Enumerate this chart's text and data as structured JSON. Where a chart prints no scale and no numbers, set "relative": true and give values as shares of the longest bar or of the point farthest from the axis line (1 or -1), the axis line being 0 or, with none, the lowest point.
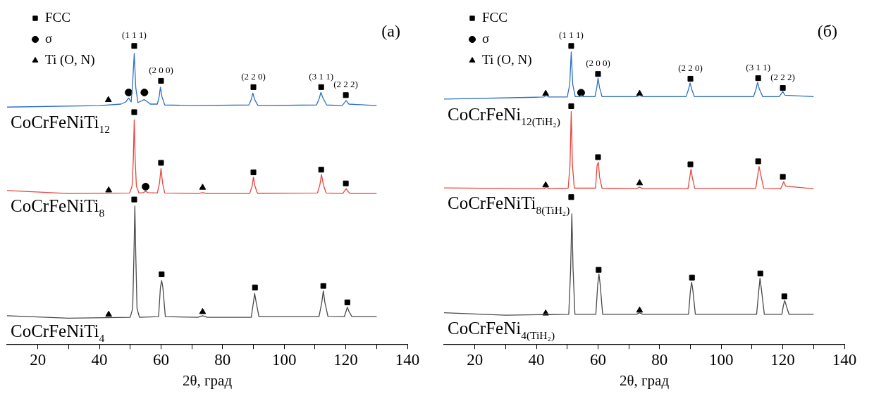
{
  "chart_data": [
    {
      "type": "line",
      "relative": true,
      "xlabel": "2θ, град",
      "xlim": [
        10,
        140
      ],
      "xticks": [
        20,
        {
          "value": 30,
          "label": null
        },
        40,
        {
          "value": 50,
          "label": null
        },
        60,
        {
          "value": 70,
          "label": null
        },
        80,
        {
          "value": 90,
          "label": null
        },
        100,
        {
          "value": 110,
          "label": null
        },
        120,
        {
          "value": 130,
          "label": null
        },
        140
      ],
      "grid": false,
      "legend": "top left",
      "annotations": [
        "(a)",
        {
          "text": "(1 1 1)",
          "x": 51.3,
          "y": 1.0
        },
        {
          "text": "(2 0 0)",
          "x": 60,
          "y": 0.883
        },
        {
          "text": "(2 2 0)",
          "x": 90,
          "y": 0.862
        },
        {
          "text": "(3 1 1)",
          "x": 112,
          "y": 0.862
        },
        {
          "text": "(2 2 2)",
          "x": 120,
          "y": 0.835
        }
      ],
      "series": [
        {
          "type": "line",
          "name": "CoCrFeNiTi$_{12}$",
          "color": "#2f6fc4",
          "marker": "none",
          "x": [
            10,
            40,
            47,
            48.5,
            49.5,
            50.3,
            50.8,
            51.3,
            51.8,
            52.5,
            53.5,
            54.5,
            55.3,
            56.5,
            58.8,
            59.4,
            59.8,
            60.3,
            61.2,
            70,
            88.5,
            89.3,
            89.8,
            90.4,
            91.5,
            110.5,
            111.4,
            111.9,
            112.6,
            113.8,
            118.8,
            119.6,
            120.1,
            121,
            130
          ],
          "values": [
            0.795,
            0.8,
            0.805,
            0.812,
            0.825,
            0.812,
            0.88,
            0.975,
            0.86,
            0.81,
            0.815,
            0.82,
            0.815,
            0.805,
            0.805,
            0.83,
            0.862,
            0.83,
            0.802,
            0.8,
            0.802,
            0.82,
            0.842,
            0.82,
            0.8,
            0.802,
            0.825,
            0.844,
            0.825,
            0.802,
            0.8,
            0.81,
            0.817,
            0.805,
            0.8
          ]
        },
        {
          "type": "line",
          "name": "CoCrFeNiTi$_{8}$",
          "color": "#e8453c",
          "marker": "none",
          "x": [
            10,
            30,
            49.8,
            50.6,
            51.0,
            51.3,
            51.6,
            52.0,
            52.8,
            54.2,
            55,
            55.8,
            58.8,
            59.5,
            60,
            60.5,
            61.2,
            72,
            73.5,
            75,
            88.8,
            89.6,
            90,
            90.5,
            91.3,
            110.8,
            111.6,
            112.1,
            112.7,
            113.6,
            119,
            119.7,
            120.1,
            120.7,
            121.5,
            130
          ],
          "values": [
            0.515,
            0.505,
            0.507,
            0.53,
            0.62,
            0.752,
            0.62,
            0.53,
            0.507,
            0.508,
            0.512,
            0.508,
            0.507,
            0.54,
            0.589,
            0.54,
            0.507,
            0.505,
            0.508,
            0.505,
            0.505,
            0.53,
            0.56,
            0.53,
            0.506,
            0.507,
            0.535,
            0.569,
            0.535,
            0.507,
            0.505,
            0.515,
            0.521,
            0.512,
            0.505,
            0.505
          ]
        },
        {
          "type": "line",
          "name": "CoCrFeNiTi$_{4}$",
          "color": "#4a4a4a",
          "marker": "none",
          "x": [
            10,
            30,
            50,
            50.8,
            51.2,
            51.5,
            51.8,
            52.2,
            53,
            59.2,
            59.8,
            60.2,
            60.6,
            61.4,
            72,
            73.5,
            75,
            89.3,
            90,
            90.4,
            90.9,
            91.8,
            111.3,
            112.2,
            112.7,
            113.2,
            114.2,
            119.5,
            120.1,
            120.5,
            121,
            122,
            130
          ],
          "values": [
            0.095,
            0.087,
            0.09,
            0.12,
            0.3,
            0.463,
            0.3,
            0.12,
            0.09,
            0.092,
            0.19,
            0.213,
            0.19,
            0.092,
            0.09,
            0.095,
            0.09,
            0.09,
            0.14,
            0.17,
            0.14,
            0.092,
            0.092,
            0.14,
            0.179,
            0.14,
            0.093,
            0.092,
            0.11,
            0.124,
            0.11,
            0.092,
            0.092
          ]
        },
        {
          "type": "scatter",
          "name": "FCC",
          "color": "#000000",
          "marker": "square",
          "x": [
            51.3,
            60,
            90,
            112,
            120,
            51.3,
            60,
            90,
            112,
            120,
            51.3,
            60.2,
            90.5,
            112.7,
            120.5
          ],
          "values": [
            1.0,
            0.883,
            0.862,
            0.862,
            0.835,
            0.778,
            0.608,
            0.576,
            0.585,
            0.539,
            0.485,
            0.234,
            0.19,
            0.195,
            0.14
          ]
        },
        {
          "type": "scatter",
          "name": "σ",
          "color": "#000000",
          "marker": "circle",
          "x": [
            49.5,
            54.6,
            55
          ],
          "values": [
            0.844,
            0.844,
            0.528
          ]
        },
        {
          "type": "scatter",
          "name": "Ti (O, N)",
          "color": "#000000",
          "marker": "triangle",
          "x": [
            42.9,
            43,
            73.5,
            43,
            73.5
          ],
          "values": [
            0.819,
            0.516,
            0.525,
            0.099,
            0.108
          ]
        }
      ]
    },
    {
      "type": "line",
      "relative": true,
      "xlabel": "2θ, град",
      "xlim": [
        10,
        140
      ],
      "xticks": [
        20,
        {
          "value": 30,
          "label": null
        },
        40,
        {
          "value": 50,
          "label": null
        },
        60,
        {
          "value": 70,
          "label": null
        },
        80,
        {
          "value": 90,
          "label": null
        },
        100,
        {
          "value": 110,
          "label": null
        },
        120,
        {
          "value": 130,
          "label": null
        },
        140
      ],
      "grid": false,
      "legend": "top left",
      "annotations": [
        "(б)",
        {
          "text": "(1 1 1)",
          "x": 51.3,
          "y": 1.0
        },
        {
          "text": "(2 0 0)",
          "x": 60,
          "y": 0.906
        },
        {
          "text": "(2 2 0)",
          "x": 90,
          "y": 0.89
        },
        {
          "text": "(3 1 1)",
          "x": 112,
          "y": 0.892
        },
        {
          "text": "(2 2 2)",
          "x": 120,
          "y": 0.859
        }
      ],
      "series": [
        {
          "type": "line",
          "name": "CoCrFeNi$_{12(TiH₂)}$",
          "color": "#2f6fc4",
          "marker": "none",
          "x": [
            10,
            40,
            42.5,
            43.2,
            44,
            50,
            50.8,
            51.3,
            51.8,
            52.6,
            54,
            54.6,
            55.2,
            59,
            59.6,
            60,
            60.5,
            61.3,
            72.5,
            73.5,
            74.5,
            88.6,
            89.4,
            89.9,
            90.4,
            91.3,
            110.5,
            111.3,
            111.8,
            112.4,
            113.5,
            118.8,
            119.5,
            120,
            120.7,
            130
          ],
          "values": [
            0.822,
            0.828,
            0.829,
            0.834,
            0.829,
            0.829,
            0.87,
            0.98,
            0.87,
            0.83,
            0.83,
            0.835,
            0.83,
            0.83,
            0.86,
            0.892,
            0.86,
            0.83,
            0.83,
            0.834,
            0.83,
            0.83,
            0.855,
            0.876,
            0.855,
            0.83,
            0.83,
            0.855,
            0.878,
            0.855,
            0.83,
            0.83,
            0.84,
            0.847,
            0.835,
            0.83
          ]
        },
        {
          "type": "line",
          "name": "CoCrFeNiTi$_{8(TiH₂)}$",
          "color": "#e8453c",
          "marker": "none",
          "x": [
            10,
            42.5,
            43.2,
            44,
            50.3,
            50.9,
            51.3,
            51.7,
            52.3,
            59.2,
            59.7,
            60.1,
            60.5,
            61.3,
            72.5,
            73.5,
            74.5,
            89.2,
            89.8,
            90.2,
            90.6,
            91.4,
            111.2,
            111.9,
            112.3,
            112.8,
            113.8,
            119.3,
            119.9,
            120.3,
            120.9,
            130
          ],
          "values": [
            0.524,
            0.521,
            0.526,
            0.521,
            0.523,
            0.6,
            0.78,
            0.6,
            0.523,
            0.523,
            0.6,
            0.61,
            0.56,
            0.523,
            0.521,
            0.527,
            0.521,
            0.521,
            0.56,
            0.587,
            0.56,
            0.522,
            0.522,
            0.57,
            0.596,
            0.57,
            0.522,
            0.521,
            0.535,
            0.545,
            0.53,
            0.521
          ]
        },
        {
          "type": "line",
          "name": "CoCrFeNi$_{4(TiH₂)}$",
          "color": "#4a4a4a",
          "marker": "none",
          "x": [
            10,
            30,
            42.5,
            43.2,
            44,
            50.5,
            51.1,
            51.5,
            51.9,
            52.5,
            59.3,
            59.9,
            60.3,
            60.7,
            61.5,
            72.5,
            73.5,
            74.5,
            89.4,
            90,
            90.4,
            90.8,
            91.6,
            111.5,
            112.2,
            112.6,
            113.1,
            114,
            119.7,
            120.2,
            120.6,
            121.1,
            122,
            130
          ],
          "values": [
            0.105,
            0.097,
            0.099,
            0.103,
            0.099,
            0.1,
            0.25,
            0.437,
            0.25,
            0.1,
            0.1,
            0.2,
            0.235,
            0.2,
            0.1,
            0.1,
            0.105,
            0.1,
            0.1,
            0.18,
            0.207,
            0.18,
            0.1,
            0.1,
            0.18,
            0.221,
            0.18,
            0.1,
            0.1,
            0.13,
            0.146,
            0.13,
            0.1,
            0.1
          ]
        },
        {
          "type": "scatter",
          "name": "FCC",
          "color": "#000000",
          "marker": "square",
          "x": [
            51.3,
            60,
            90,
            112,
            120,
            51.3,
            60,
            90,
            112,
            120,
            51.3,
            60.2,
            90.5,
            112.7,
            120.5
          ],
          "values": [
            1.0,
            0.906,
            0.89,
            0.892,
            0.859,
            0.798,
            0.627,
            0.603,
            0.613,
            0.561,
            0.493,
            0.249,
            0.223,
            0.237,
            0.16
          ]
        },
        {
          "type": "scatter",
          "name": "σ",
          "color": "#000000",
          "marker": "circle",
          "x": [
            54.5
          ],
          "values": [
            0.843
          ]
        },
        {
          "type": "scatter",
          "name": "Ti (O, N)",
          "color": "#000000",
          "marker": "triangle",
          "x": [
            43,
            73.5,
            43,
            73.5,
            43,
            73.5
          ],
          "values": [
            0.84,
            0.84,
            0.533,
            0.54,
            0.103,
            0.113
          ]
        }
      ]
    }
  ]
}
